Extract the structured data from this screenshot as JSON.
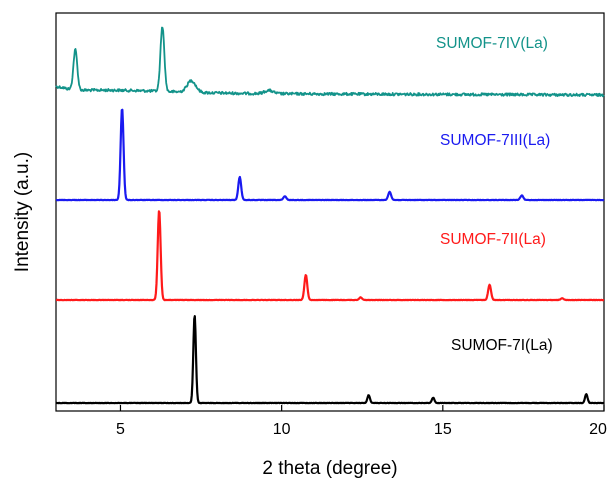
{
  "chart_data": {
    "type": "line",
    "xlabel": "2 theta (degree)",
    "ylabel": "Intensity (a.u.)",
    "xlim": [
      3,
      20
    ],
    "x_ticks": [
      5,
      10,
      15,
      20
    ],
    "grid": false,
    "legend": "inline labels at right",
    "series": [
      {
        "name": "SUMOF-7IV(La)",
        "color": "#13938a",
        "peaks": [
          {
            "x": 3.6,
            "height": 0.62
          },
          {
            "x": 6.3,
            "height": 1.0
          },
          {
            "x": 7.2,
            "height": 0.18
          },
          {
            "x": 9.6,
            "height": 0.05
          }
        ]
      },
      {
        "name": "SUMOF-7III(La)",
        "color": "#1a1af0",
        "peaks": [
          {
            "x": 5.05,
            "height": 1.0
          },
          {
            "x": 8.7,
            "height": 0.25
          },
          {
            "x": 10.1,
            "height": 0.04
          },
          {
            "x": 13.35,
            "height": 0.09
          },
          {
            "x": 17.45,
            "height": 0.05
          }
        ]
      },
      {
        "name": "SUMOF-7II(La)",
        "color": "#ff1a1a",
        "peaks": [
          {
            "x": 6.2,
            "height": 1.0
          },
          {
            "x": 10.75,
            "height": 0.28
          },
          {
            "x": 12.45,
            "height": 0.03
          },
          {
            "x": 16.45,
            "height": 0.17
          },
          {
            "x": 18.7,
            "height": 0.02
          }
        ]
      },
      {
        "name": "SUMOF-7I(La)",
        "color": "#000000",
        "peaks": [
          {
            "x": 7.3,
            "height": 1.0
          },
          {
            "x": 12.7,
            "height": 0.09
          },
          {
            "x": 14.7,
            "height": 0.06
          },
          {
            "x": 19.45,
            "height": 0.1
          }
        ]
      }
    ]
  }
}
